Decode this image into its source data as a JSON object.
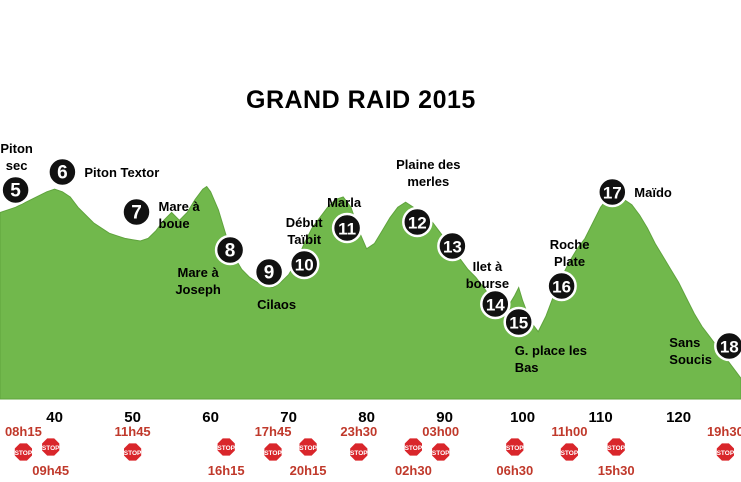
{
  "title": "GRAND RAID 2015",
  "chart_data": {
    "type": "area",
    "title": "GRAND RAID 2015",
    "xlabel": "",
    "ylabel": "",
    "xlim": [
      33,
      128
    ],
    "ylim": [
      0,
      100
    ],
    "grid": false,
    "fill_color": "#71b84c",
    "cutoff_color": "#c0392b",
    "x_ticks": [
      40,
      50,
      60,
      70,
      80,
      90,
      100,
      110,
      120
    ],
    "profile": [
      [
        33,
        72
      ],
      [
        35,
        74
      ],
      [
        37,
        77
      ],
      [
        39,
        80
      ],
      [
        40,
        81
      ],
      [
        41,
        80
      ],
      [
        42,
        78
      ],
      [
        43,
        74
      ],
      [
        44,
        71
      ],
      [
        45,
        68
      ],
      [
        46,
        66
      ],
      [
        47,
        64
      ],
      [
        48,
        63
      ],
      [
        49,
        62
      ],
      [
        50,
        61.5
      ],
      [
        51,
        61
      ],
      [
        52,
        62
      ],
      [
        53,
        65
      ],
      [
        54,
        69
      ],
      [
        55,
        72
      ],
      [
        56,
        69
      ],
      [
        57,
        72
      ],
      [
        58,
        77
      ],
      [
        59,
        81
      ],
      [
        59.5,
        82
      ],
      [
        60,
        80
      ],
      [
        61,
        73
      ],
      [
        62,
        63
      ],
      [
        63,
        55
      ],
      [
        64,
        50
      ],
      [
        65,
        47
      ],
      [
        66,
        45
      ],
      [
        67,
        44
      ],
      [
        68,
        43
      ],
      [
        69,
        45
      ],
      [
        70,
        48
      ],
      [
        71,
        53
      ],
      [
        72,
        60
      ],
      [
        73,
        66
      ],
      [
        74,
        70
      ],
      [
        75,
        74
      ],
      [
        76,
        77
      ],
      [
        77,
        78
      ],
      [
        78,
        74
      ],
      [
        79,
        65
      ],
      [
        80,
        58
      ],
      [
        81,
        60
      ],
      [
        82,
        65
      ],
      [
        83,
        70
      ],
      [
        84,
        74
      ],
      [
        85,
        76
      ],
      [
        86,
        74
      ],
      [
        87,
        72
      ],
      [
        88,
        70
      ],
      [
        89,
        66
      ],
      [
        90,
        62
      ],
      [
        91,
        58
      ],
      [
        92,
        54
      ],
      [
        93,
        50
      ],
      [
        94,
        47
      ],
      [
        95,
        43
      ],
      [
        96,
        39
      ],
      [
        97,
        36
      ],
      [
        98,
        35
      ],
      [
        99,
        40
      ],
      [
        99.5,
        43
      ],
      [
        100,
        38
      ],
      [
        101,
        30
      ],
      [
        102,
        26
      ],
      [
        103,
        32
      ],
      [
        104,
        40
      ],
      [
        105,
        47
      ],
      [
        106,
        53
      ],
      [
        107,
        58
      ],
      [
        108,
        62
      ],
      [
        109,
        68
      ],
      [
        110,
        74
      ],
      [
        111,
        78
      ],
      [
        112,
        79
      ],
      [
        113,
        77
      ],
      [
        114,
        75
      ],
      [
        115,
        71
      ],
      [
        116,
        66
      ],
      [
        117,
        60
      ],
      [
        118,
        55
      ],
      [
        119,
        50
      ],
      [
        120,
        45
      ],
      [
        121,
        39
      ],
      [
        122,
        33
      ],
      [
        123,
        28
      ],
      [
        124,
        24
      ],
      [
        125,
        20
      ],
      [
        126,
        16
      ],
      [
        127,
        12
      ],
      [
        128,
        8
      ]
    ],
    "checkpoints": [
      {
        "num": "5",
        "name": "Piton sec",
        "x": 35
      },
      {
        "num": "6",
        "name": "Piton Textor",
        "x": 41
      },
      {
        "num": "7",
        "name": "Mare à boue",
        "x": 50.5
      },
      {
        "num": "8",
        "name": "Mare à Joseph",
        "x": 62.5
      },
      {
        "num": "9",
        "name": "Cilaos",
        "x": 67.5
      },
      {
        "num": "10",
        "name": "Début Taïbit",
        "x": 72
      },
      {
        "num": "11",
        "name": "Marla",
        "x": 77.5
      },
      {
        "num": "12",
        "name": "Plaine des merles",
        "x": 86.5
      },
      {
        "num": "13",
        "name": "Ilet à bourse",
        "x": 91
      },
      {
        "num": "14",
        "name": "",
        "x": 96.5
      },
      {
        "num": "15",
        "name": "G. place les Bas",
        "x": 99.5
      },
      {
        "num": "16",
        "name": "Roche Plate",
        "x": 105
      },
      {
        "num": "17",
        "name": "Maïdo",
        "x": 111.5
      },
      {
        "num": "18",
        "name": "Sans Soucis",
        "x": 126.5
      }
    ],
    "cutoffs": [
      {
        "time": "08h15",
        "x": 36,
        "row": "top"
      },
      {
        "time": "09h45",
        "x": 39.5,
        "row": "bottom"
      },
      {
        "time": "11h45",
        "x": 50,
        "row": "top"
      },
      {
        "time": "16h15",
        "x": 62,
        "row": "bottom"
      },
      {
        "time": "17h45",
        "x": 68,
        "row": "top"
      },
      {
        "time": "20h15",
        "x": 72.5,
        "row": "bottom"
      },
      {
        "time": "23h30",
        "x": 79,
        "row": "top"
      },
      {
        "time": "02h30",
        "x": 86,
        "row": "bottom"
      },
      {
        "time": "03h00",
        "x": 89.5,
        "row": "top"
      },
      {
        "time": "06h30",
        "x": 99,
        "row": "bottom"
      },
      {
        "time": "11h00",
        "x": 106,
        "row": "top"
      },
      {
        "time": "15h30",
        "x": 112,
        "row": "bottom"
      },
      {
        "time": "19h30",
        "x": 126,
        "row": "top"
      }
    ],
    "stop_sign_label": "STOP"
  }
}
